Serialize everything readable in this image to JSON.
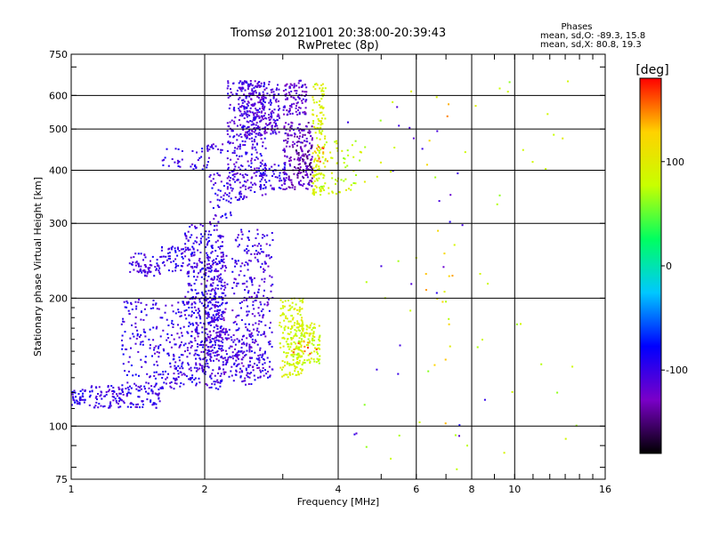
{
  "chart_data": {
    "type": "scatter",
    "title": "Tromsø 20121001 20:38:00-20:39:43",
    "subtitle": "RwPretec (8p)",
    "xlabel": "Frequency [MHz]",
    "ylabel": "Stationary phase Virtual Height [km]",
    "x_scale": "log",
    "y_scale": "log",
    "xlim": [
      1,
      16
    ],
    "ylim": [
      75,
      750
    ],
    "x_ticks": [
      1,
      2,
      4,
      6,
      8,
      10,
      16
    ],
    "x_tick_labels": [
      "1",
      "2",
      "4",
      "6",
      "8",
      "10",
      "16"
    ],
    "y_ticks": [
      75,
      100,
      200,
      300,
      400,
      500,
      600,
      750
    ],
    "y_tick_labels": [
      "75",
      "100",
      "200",
      "300",
      "400",
      "500",
      "600",
      "750"
    ],
    "grid": true,
    "info": {
      "heading": "Phases",
      "line1": "mean, sd,O: -89.3, 15.8",
      "line2": "mean, sd,X:  80.8, 19.3"
    },
    "colorbar": {
      "label": "[deg]",
      "min": -180,
      "max": 180,
      "ticks": [
        100,
        0,
        -100
      ],
      "tick_labels": [
        "100",
        "0",
        "-100"
      ]
    },
    "color_stops": [
      "#000000",
      "#7a00c8",
      "#0000ff",
      "#00c8ff",
      "#00ff60",
      "#c8ff00",
      "#ffd200",
      "#ff0000"
    ],
    "series": [
      {
        "clusters": [
          {
            "x": [
              1.0,
              1.08
            ],
            "y": [
              112,
              122
            ],
            "phase": -95,
            "n": 40
          },
          {
            "x": [
              1.1,
              1.6
            ],
            "y": [
              110,
              125
            ],
            "phase": -100,
            "n": 150
          },
          {
            "x": [
              1.3,
              2.2
            ],
            "y": [
              122,
              200
            ],
            "phase": -100,
            "n": 320
          },
          {
            "x": [
              1.7,
              2.6
            ],
            "y": [
              125,
              170
            ],
            "phase": -105,
            "n": 250
          },
          {
            "x": [
              1.8,
              2.2
            ],
            "y": [
              170,
              300
            ],
            "phase": -100,
            "n": 260
          },
          {
            "x": [
              2.0,
              2.25
            ],
            "y": [
              140,
              260
            ],
            "phase": -110,
            "n": 170
          },
          {
            "x": [
              2.3,
              2.85
            ],
            "y": [
              130,
              290
            ],
            "phase": -105,
            "n": 300
          },
          {
            "x": [
              1.35,
              1.8
            ],
            "y": [
              228,
              255
            ],
            "phase": -100,
            "n": 70
          },
          {
            "x": [
              1.4,
              1.6
            ],
            "y": [
              225,
              240
            ],
            "phase": -105,
            "n": 30
          },
          {
            "x": [
              1.6,
              1.9
            ],
            "y": [
              255,
              265
            ],
            "phase": -100,
            "n": 25
          },
          {
            "x": [
              1.6,
              2.05
            ],
            "y": [
              400,
              450
            ],
            "phase": -100,
            "n": 40
          },
          {
            "x": [
              2.0,
              2.2
            ],
            "y": [
              440,
              470
            ],
            "phase": -105,
            "n": 15
          },
          {
            "x": [
              2.05,
              2.3
            ],
            "y": [
              300,
              400
            ],
            "phase": -100,
            "n": 50
          },
          {
            "x": [
              2.25,
              2.75
            ],
            "y": [
              340,
              650
            ],
            "phase": -105,
            "n": 330
          },
          {
            "x": [
              2.4,
              2.95
            ],
            "y": [
              480,
              650
            ],
            "phase": -110,
            "n": 220
          },
          {
            "x": [
              3.0,
              3.4
            ],
            "y": [
              540,
              650
            ],
            "phase": -115,
            "n": 100
          },
          {
            "x": [
              2.65,
              3.05
            ],
            "y": [
              360,
              420
            ],
            "phase": -100,
            "n": 60
          },
          {
            "x": [
              3.0,
              3.5
            ],
            "y": [
              360,
              520
            ],
            "phase": -125,
            "n": 170
          },
          {
            "x": [
              3.2,
              3.5
            ],
            "y": [
              380,
              460
            ],
            "phase": -140,
            "n": 50
          },
          {
            "x": [
              3.5,
              3.75
            ],
            "y": [
              350,
              640
            ],
            "phase": 90,
            "n": 140
          },
          {
            "x": [
              3.6,
              4.6
            ],
            "y": [
              350,
              470
            ],
            "phase": 80,
            "n": 60
          },
          {
            "x": [
              3.5,
              3.8
            ],
            "y": [
              400,
              460
            ],
            "phase": 150,
            "n": 10
          },
          {
            "x": [
              2.95,
              3.35
            ],
            "y": [
              130,
              200
            ],
            "phase": 90,
            "n": 170
          },
          {
            "x": [
              3.1,
              3.65
            ],
            "y": [
              140,
              175
            ],
            "phase": 85,
            "n": 130
          },
          {
            "x": [
              3.15,
              3.6
            ],
            "y": [
              148,
              158
            ],
            "phase": 150,
            "n": 10
          },
          {
            "x": [
              4.4,
              14
            ],
            "y": [
              75,
              650
            ],
            "phase": 80,
            "n": 55
          },
          {
            "x": [
              4.0,
              9
            ],
            "y": [
              90,
              650
            ],
            "phase": -105,
            "n": 25
          },
          {
            "x": [
              6.3,
              7.3
            ],
            "y": [
              100,
              640
            ],
            "phase": 130,
            "n": 16
          }
        ]
      }
    ]
  }
}
